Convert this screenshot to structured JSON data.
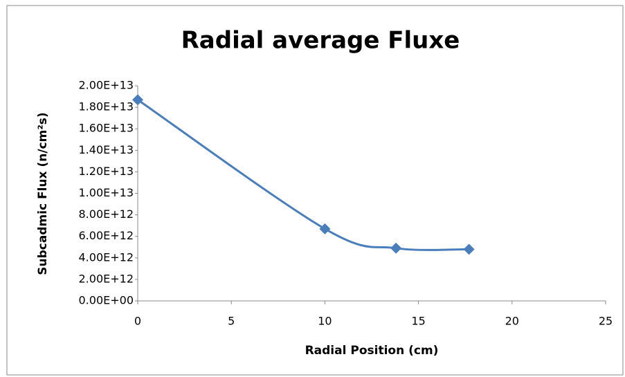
{
  "chart_data": {
    "type": "scatter",
    "title": "Radial average Fluxe",
    "x_label": "Radial Position (cm)",
    "y_label": "Subcadmic Flux (n/cm²s)",
    "series": [
      {
        "name": "Flux",
        "color": "#4a7ebb",
        "x": [
          0,
          10,
          13.8,
          17.7
        ],
        "values": [
          18700000000000,
          6700000000000,
          4900000000000,
          4800000000000
        ]
      }
    ],
    "xlim": [
      0,
      25
    ],
    "xticks": [
      0,
      5,
      10,
      15,
      20,
      25
    ],
    "ylim": [
      0,
      20000000000000
    ],
    "yticks": [
      {
        "value": 0,
        "label": "0.00E+00"
      },
      {
        "value": 2000000000000,
        "label": "2.00E+12"
      },
      {
        "value": 4000000000000,
        "label": "4.00E+12"
      },
      {
        "value": 6000000000000,
        "label": "6.00E+12"
      },
      {
        "value": 8000000000000,
        "label": "8.00E+12"
      },
      {
        "value": 10000000000000,
        "label": "1.00E+13"
      },
      {
        "value": 12000000000000,
        "label": "1.20E+13"
      },
      {
        "value": 14000000000000,
        "label": "1.40E+13"
      },
      {
        "value": 16000000000000,
        "label": "1.60E+13"
      },
      {
        "value": 18000000000000,
        "label": "1.80E+13"
      },
      {
        "value": 20000000000000,
        "label": "2.00E+13"
      }
    ],
    "grid": false,
    "smooth": true
  }
}
